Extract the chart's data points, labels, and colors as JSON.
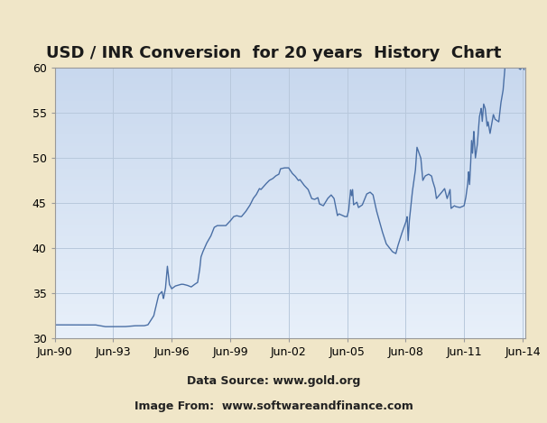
{
  "title": "USD / INR Conversion  for 20 years  History  Chart",
  "subtitle1": "Data Source: www.gold.org",
  "subtitle2": "Image From:  www.softwareandfinance.com",
  "bg_outer_color": "#f0e6c8",
  "bg_plot_top": "#c8d8ee",
  "bg_plot_bottom": "#e8f0fa",
  "line_color": "#4a6fa5",
  "line_width": 1.0,
  "ylim": [
    30,
    60
  ],
  "yticks": [
    30,
    35,
    40,
    45,
    50,
    55,
    60
  ],
  "grid_color": "#b8c8dc",
  "title_fontsize": 13,
  "subtitle_fontsize": 9,
  "tick_label_fontsize": 9,
  "key_points": [
    [
      1990.42,
      31.5
    ],
    [
      1991.0,
      31.5
    ],
    [
      1991.5,
      31.5
    ],
    [
      1992.0,
      31.5
    ],
    [
      1992.5,
      31.5
    ],
    [
      1993.0,
      31.3
    ],
    [
      1993.42,
      31.3
    ],
    [
      1993.8,
      31.3
    ],
    [
      1994.0,
      31.3
    ],
    [
      1994.5,
      31.4
    ],
    [
      1995.0,
      31.4
    ],
    [
      1995.2,
      31.5
    ],
    [
      1995.5,
      32.5
    ],
    [
      1995.75,
      34.8
    ],
    [
      1995.92,
      35.2
    ],
    [
      1996.0,
      34.4
    ],
    [
      1996.1,
      35.5
    ],
    [
      1996.2,
      38.0
    ],
    [
      1996.3,
      36.0
    ],
    [
      1996.42,
      35.5
    ],
    [
      1996.6,
      35.8
    ],
    [
      1996.75,
      35.9
    ],
    [
      1996.92,
      36.0
    ],
    [
      1997.0,
      36.0
    ],
    [
      1997.2,
      35.9
    ],
    [
      1997.42,
      35.7
    ],
    [
      1997.6,
      36.0
    ],
    [
      1997.75,
      36.2
    ],
    [
      1997.85,
      37.5
    ],
    [
      1997.92,
      39.0
    ],
    [
      1998.0,
      39.5
    ],
    [
      1998.2,
      40.5
    ],
    [
      1998.42,
      41.3
    ],
    [
      1998.6,
      42.3
    ],
    [
      1998.75,
      42.5
    ],
    [
      1998.92,
      42.5
    ],
    [
      1999.0,
      42.5
    ],
    [
      1999.2,
      42.5
    ],
    [
      1999.42,
      43.0
    ],
    [
      1999.6,
      43.5
    ],
    [
      1999.75,
      43.6
    ],
    [
      1999.92,
      43.5
    ],
    [
      2000.0,
      43.5
    ],
    [
      2000.2,
      44.0
    ],
    [
      2000.42,
      44.7
    ],
    [
      2000.6,
      45.5
    ],
    [
      2000.75,
      45.9
    ],
    [
      2000.92,
      46.6
    ],
    [
      2001.0,
      46.5
    ],
    [
      2001.2,
      47.0
    ],
    [
      2001.42,
      47.5
    ],
    [
      2001.6,
      47.7
    ],
    [
      2001.75,
      48.0
    ],
    [
      2001.92,
      48.2
    ],
    [
      2002.0,
      48.8
    ],
    [
      2002.2,
      48.9
    ],
    [
      2002.42,
      48.9
    ],
    [
      2002.6,
      48.3
    ],
    [
      2002.75,
      48.0
    ],
    [
      2002.92,
      47.5
    ],
    [
      2003.0,
      47.6
    ],
    [
      2003.2,
      47.0
    ],
    [
      2003.42,
      46.5
    ],
    [
      2003.6,
      45.5
    ],
    [
      2003.75,
      45.4
    ],
    [
      2003.92,
      45.6
    ],
    [
      2004.0,
      44.9
    ],
    [
      2004.2,
      44.7
    ],
    [
      2004.42,
      45.5
    ],
    [
      2004.6,
      45.9
    ],
    [
      2004.75,
      45.5
    ],
    [
      2004.92,
      43.6
    ],
    [
      2005.0,
      43.8
    ],
    [
      2005.2,
      43.6
    ],
    [
      2005.3,
      43.5
    ],
    [
      2005.42,
      43.5
    ],
    [
      2005.5,
      44.2
    ],
    [
      2005.6,
      46.5
    ],
    [
      2005.65,
      45.8
    ],
    [
      2005.7,
      46.5
    ],
    [
      2005.75,
      44.8
    ],
    [
      2005.92,
      45.1
    ],
    [
      2006.0,
      44.5
    ],
    [
      2006.2,
      44.8
    ],
    [
      2006.42,
      46.0
    ],
    [
      2006.6,
      46.2
    ],
    [
      2006.75,
      45.9
    ],
    [
      2006.92,
      44.2
    ],
    [
      2007.0,
      43.6
    ],
    [
      2007.2,
      42.0
    ],
    [
      2007.42,
      40.5
    ],
    [
      2007.6,
      40.0
    ],
    [
      2007.75,
      39.6
    ],
    [
      2007.92,
      39.4
    ],
    [
      2008.0,
      40.1
    ],
    [
      2008.2,
      41.5
    ],
    [
      2008.42,
      42.8
    ],
    [
      2008.5,
      43.5
    ],
    [
      2008.55,
      40.8
    ],
    [
      2008.6,
      42.8
    ],
    [
      2008.75,
      46.0
    ],
    [
      2008.92,
      48.6
    ],
    [
      2009.0,
      51.2
    ],
    [
      2009.2,
      50.0
    ],
    [
      2009.3,
      47.5
    ],
    [
      2009.42,
      48.0
    ],
    [
      2009.6,
      48.2
    ],
    [
      2009.75,
      48.0
    ],
    [
      2009.8,
      47.5
    ],
    [
      2009.92,
      46.7
    ],
    [
      2010.0,
      45.5
    ],
    [
      2010.2,
      46.0
    ],
    [
      2010.42,
      46.6
    ],
    [
      2010.55,
      45.5
    ],
    [
      2010.6,
      45.8
    ],
    [
      2010.7,
      46.5
    ],
    [
      2010.75,
      44.4
    ],
    [
      2010.92,
      44.7
    ],
    [
      2011.0,
      44.6
    ],
    [
      2011.2,
      44.5
    ],
    [
      2011.42,
      44.7
    ],
    [
      2011.5,
      45.5
    ],
    [
      2011.6,
      47.0
    ],
    [
      2011.65,
      48.5
    ],
    [
      2011.7,
      47.0
    ],
    [
      2011.75,
      49.0
    ],
    [
      2011.8,
      52.0
    ],
    [
      2011.85,
      50.5
    ],
    [
      2011.92,
      53.0
    ],
    [
      2012.0,
      50.0
    ],
    [
      2012.1,
      51.5
    ],
    [
      2012.2,
      54.5
    ],
    [
      2012.3,
      55.5
    ],
    [
      2012.35,
      54.0
    ],
    [
      2012.42,
      56.0
    ],
    [
      2012.5,
      55.5
    ],
    [
      2012.6,
      53.5
    ],
    [
      2012.65,
      54.0
    ],
    [
      2012.75,
      52.7
    ],
    [
      2012.9,
      54.5
    ],
    [
      2012.92,
      54.8
    ],
    [
      2013.0,
      54.3
    ],
    [
      2013.2,
      54.0
    ],
    [
      2013.3,
      56.0
    ],
    [
      2013.42,
      57.5
    ],
    [
      2013.5,
      59.5
    ],
    [
      2013.6,
      63.5
    ],
    [
      2013.65,
      62.0
    ],
    [
      2013.7,
      61.5
    ],
    [
      2013.75,
      62.5
    ],
    [
      2013.85,
      62.3
    ],
    [
      2013.92,
      61.8
    ],
    [
      2014.0,
      62.0
    ],
    [
      2014.1,
      60.5
    ],
    [
      2014.2,
      60.0
    ],
    [
      2014.3,
      59.8
    ],
    [
      2014.42,
      60.1
    ],
    [
      2014.5,
      59.8
    ]
  ]
}
